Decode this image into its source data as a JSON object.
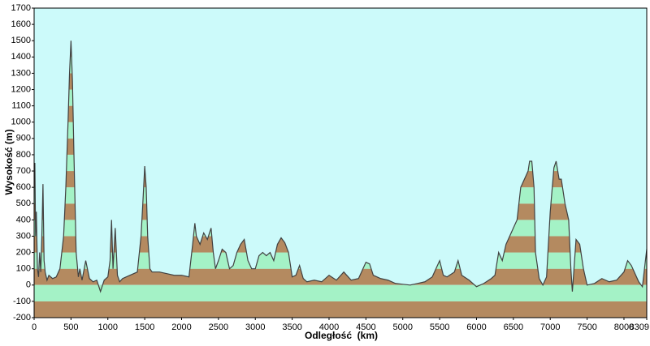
{
  "chart_data": {
    "type": "area",
    "x_label": "Odległość  (km)",
    "y_label": "Wysokość (m)",
    "xlim": [
      0,
      8309
    ],
    "ylim": [
      -200,
      1700
    ],
    "xticks": [
      0,
      500,
      1000,
      1500,
      2000,
      2500,
      3000,
      3500,
      4000,
      4500,
      5000,
      5500,
      6000,
      6500,
      7000,
      7500,
      8000,
      8309
    ],
    "yticks": [
      -200,
      -100,
      0,
      100,
      200,
      300,
      400,
      500,
      600,
      700,
      800,
      900,
      1000,
      1100,
      1200,
      1300,
      1400,
      1500,
      1600,
      1700
    ],
    "color": "#404040",
    "band_colors": [
      "#b48a60",
      "#a4f2c6"
    ],
    "plot_background": "#ccfafa",
    "x": [
      0,
      10,
      20,
      30,
      45,
      60,
      75,
      90,
      105,
      120,
      135,
      150,
      175,
      200,
      250,
      300,
      350,
      400,
      430,
      460,
      480,
      500,
      520,
      540,
      570,
      600,
      620,
      650,
      700,
      750,
      800,
      850,
      900,
      950,
      1000,
      1030,
      1050,
      1070,
      1100,
      1130,
      1160,
      1200,
      1300,
      1400,
      1450,
      1480,
      1500,
      1520,
      1540,
      1570,
      1600,
      1700,
      1800,
      1900,
      2000,
      2100,
      2150,
      2180,
      2200,
      2250,
      2300,
      2350,
      2400,
      2430,
      2460,
      2500,
      2550,
      2600,
      2650,
      2700,
      2750,
      2800,
      2850,
      2900,
      2950,
      3000,
      3050,
      3100,
      3150,
      3200,
      3250,
      3300,
      3350,
      3400,
      3450,
      3500,
      3550,
      3600,
      3650,
      3700,
      3800,
      3900,
      4000,
      4100,
      4200,
      4300,
      4400,
      4500,
      4550,
      4600,
      4700,
      4800,
      4900,
      5000,
      5100,
      5200,
      5300,
      5400,
      5450,
      5500,
      5550,
      5600,
      5700,
      5750,
      5800,
      5900,
      6000,
      6100,
      6200,
      6250,
      6300,
      6350,
      6400,
      6450,
      6500,
      6550,
      6600,
      6650,
      6700,
      6720,
      6750,
      6780,
      6800,
      6850,
      6900,
      6950,
      7000,
      7050,
      7080,
      7120,
      7150,
      7200,
      7250,
      7280,
      7300,
      7330,
      7350,
      7400,
      7450,
      7500,
      7600,
      7700,
      7800,
      7900,
      8000,
      8050,
      8100,
      8200,
      8250,
      8309
    ],
    "values": [
      700,
      750,
      300,
      450,
      100,
      50,
      200,
      80,
      300,
      620,
      150,
      80,
      30,
      60,
      40,
      50,
      100,
      300,
      600,
      1000,
      1300,
      1500,
      1250,
      800,
      200,
      50,
      100,
      30,
      150,
      40,
      20,
      30,
      -40,
      30,
      50,
      150,
      400,
      100,
      350,
      60,
      20,
      40,
      60,
      80,
      300,
      550,
      730,
      600,
      300,
      100,
      80,
      80,
      70,
      60,
      60,
      50,
      250,
      380,
      300,
      250,
      320,
      280,
      350,
      200,
      100,
      150,
      220,
      200,
      100,
      120,
      200,
      250,
      280,
      150,
      100,
      100,
      180,
      200,
      180,
      200,
      150,
      250,
      290,
      260,
      200,
      50,
      60,
      120,
      40,
      20,
      30,
      20,
      60,
      30,
      80,
      30,
      40,
      140,
      130,
      60,
      40,
      30,
      10,
      5,
      0,
      10,
      20,
      50,
      100,
      150,
      60,
      50,
      80,
      150,
      60,
      30,
      -10,
      10,
      40,
      60,
      200,
      150,
      250,
      300,
      350,
      400,
      600,
      650,
      700,
      760,
      760,
      600,
      200,
      40,
      0,
      50,
      450,
      720,
      760,
      650,
      650,
      500,
      400,
      100,
      -40,
      150,
      280,
      250,
      100,
      0,
      10,
      40,
      20,
      30,
      80,
      150,
      120,
      20,
      -10,
      220
    ]
  }
}
